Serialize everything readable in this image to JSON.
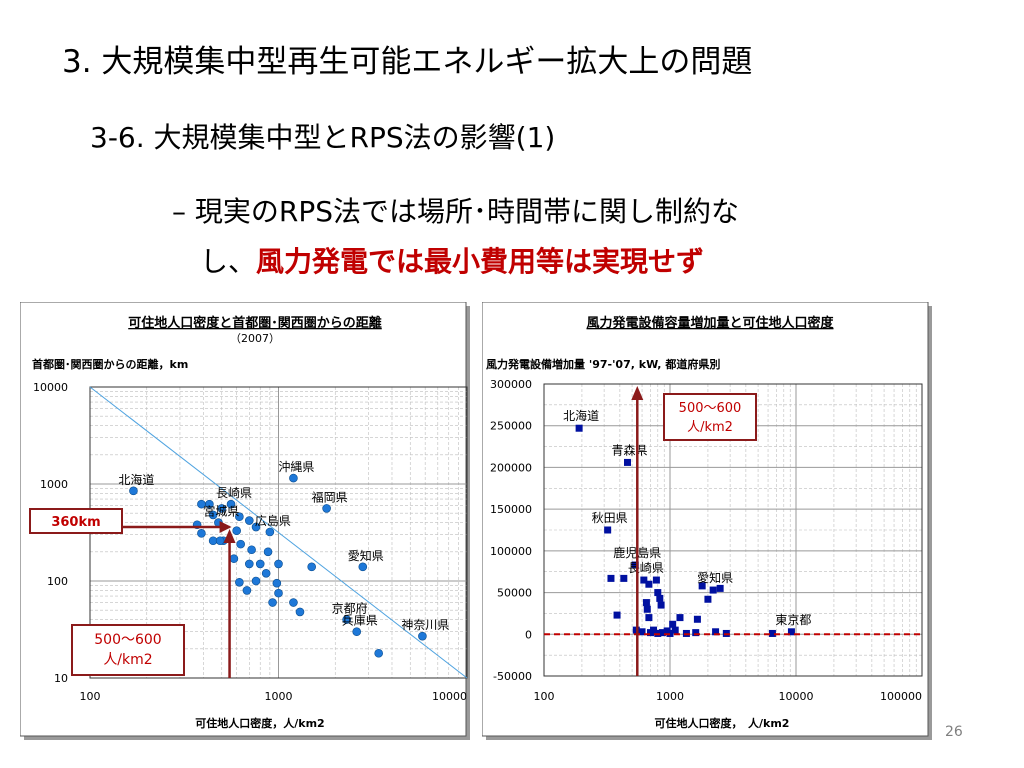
{
  "slide": {
    "title": "3. 大規模集中型再生可能エネルギー拡大上の問題",
    "subtitle": "3-6. 大規模集中型とRPS法の影響(1)",
    "bullet_prefix": "– 現実のRPS法では場所･時間帯に関し制約な",
    "bullet_plain": "し、",
    "bullet_red": "風力発電では最小費用等は実現せず",
    "page_number": "26"
  },
  "colors": {
    "accent_red": "#c00000",
    "dark_red": "#8b1a1a",
    "series_blue": "#1e78d8",
    "series_navy": "#0010a0",
    "grid": "#bdbdbd",
    "trend": "#4fa3e0"
  },
  "chart_data": [
    {
      "type": "scatter",
      "title": "可住地人口密度と首都圏･関西圏からの距離",
      "subtitle": "（2007）",
      "ylabel": "首都圏･関西圏からの距離，km",
      "xlabel": "可住地人口密度，人/km2",
      "x_scale": "log",
      "y_scale": "log",
      "xlim": [
        100,
        10000
      ],
      "ylim": [
        10,
        10000
      ],
      "x_ticks": [
        "100",
        "1000",
        "10000"
      ],
      "y_ticks": [
        "10",
        "100",
        "1000",
        "10000"
      ],
      "grid": true,
      "trend_line": [
        [
          100,
          10000
        ],
        [
          10000,
          10
        ]
      ],
      "points": [
        {
          "x": 170,
          "y": 850,
          "label": "北海道"
        },
        {
          "x": 1200,
          "y": 1150,
          "label": "沖縄県"
        },
        {
          "x": 560,
          "y": 620,
          "label": "長崎県"
        },
        {
          "x": 1800,
          "y": 560,
          "label": "福岡県"
        },
        {
          "x": 480,
          "y": 400,
          "label": "宮城県"
        },
        {
          "x": 900,
          "y": 320,
          "label": "広島県"
        },
        {
          "x": 2800,
          "y": 140,
          "label": "愛知県"
        },
        {
          "x": 2300,
          "y": 40,
          "label": "京都府"
        },
        {
          "x": 2600,
          "y": 30,
          "label": "兵庫県"
        },
        {
          "x": 5800,
          "y": 27,
          "label": "神奈川県"
        },
        {
          "x": 3400,
          "y": 18,
          "label": ""
        },
        {
          "x": 390,
          "y": 620,
          "label": ""
        },
        {
          "x": 430,
          "y": 620,
          "label": ""
        },
        {
          "x": 500,
          "y": 560,
          "label": ""
        },
        {
          "x": 450,
          "y": 480,
          "label": ""
        },
        {
          "x": 620,
          "y": 460,
          "label": ""
        },
        {
          "x": 700,
          "y": 420,
          "label": ""
        },
        {
          "x": 370,
          "y": 380,
          "label": ""
        },
        {
          "x": 760,
          "y": 360,
          "label": ""
        },
        {
          "x": 600,
          "y": 330,
          "label": ""
        },
        {
          "x": 390,
          "y": 310,
          "label": ""
        },
        {
          "x": 450,
          "y": 260,
          "label": ""
        },
        {
          "x": 510,
          "y": 260,
          "label": ""
        },
        {
          "x": 490,
          "y": 260,
          "label": ""
        },
        {
          "x": 630,
          "y": 240,
          "label": ""
        },
        {
          "x": 720,
          "y": 210,
          "label": ""
        },
        {
          "x": 880,
          "y": 200,
          "label": ""
        },
        {
          "x": 580,
          "y": 170,
          "label": ""
        },
        {
          "x": 700,
          "y": 150,
          "label": ""
        },
        {
          "x": 800,
          "y": 150,
          "label": ""
        },
        {
          "x": 1000,
          "y": 150,
          "label": ""
        },
        {
          "x": 1500,
          "y": 140,
          "label": ""
        },
        {
          "x": 860,
          "y": 120,
          "label": ""
        },
        {
          "x": 760,
          "y": 100,
          "label": ""
        },
        {
          "x": 620,
          "y": 97,
          "label": ""
        },
        {
          "x": 980,
          "y": 95,
          "label": ""
        },
        {
          "x": 680,
          "y": 80,
          "label": ""
        },
        {
          "x": 1000,
          "y": 75,
          "label": ""
        },
        {
          "x": 930,
          "y": 60,
          "label": ""
        },
        {
          "x": 1200,
          "y": 60,
          "label": ""
        },
        {
          "x": 1300,
          "y": 48,
          "label": ""
        }
      ],
      "annotations": {
        "callout_360": "360km",
        "callout_density": "500～600\n人/km2"
      },
      "reference_x": 550,
      "reference_y": 360
    },
    {
      "type": "scatter",
      "title": "風力発電設備容量増加量と可住地人口密度",
      "ylabel": "風力発電設備増加量 '97-'07, kW, 都道府県別",
      "xlabel": "可住地人口密度，　人/km2",
      "x_scale": "log",
      "xlim": [
        100,
        100000
      ],
      "ylim": [
        -50000,
        300000
      ],
      "x_ticks": [
        "100",
        "1000",
        "10000",
        "100000"
      ],
      "y_ticks": [
        "-50000",
        "0",
        "50000",
        "100000",
        "150000",
        "200000",
        "250000",
        "300000"
      ],
      "grid": true,
      "points": [
        {
          "x": 190,
          "y": 247000,
          "label": "北海道"
        },
        {
          "x": 460,
          "y": 206000,
          "label": "青森県"
        },
        {
          "x": 320,
          "y": 125000,
          "label": "秋田県"
        },
        {
          "x": 530,
          "y": 83000,
          "label": "鹿児島県"
        },
        {
          "x": 620,
          "y": 65000,
          "label": "長崎県"
        },
        {
          "x": 2200,
          "y": 53000,
          "label": "愛知県"
        },
        {
          "x": 9200,
          "y": 3000,
          "label": "東京都"
        },
        {
          "x": 340,
          "y": 67000,
          "label": ""
        },
        {
          "x": 430,
          "y": 67000,
          "label": ""
        },
        {
          "x": 680,
          "y": 60000,
          "label": ""
        },
        {
          "x": 780,
          "y": 65000,
          "label": ""
        },
        {
          "x": 800,
          "y": 50000,
          "label": ""
        },
        {
          "x": 830,
          "y": 43000,
          "label": ""
        },
        {
          "x": 850,
          "y": 35000,
          "label": ""
        },
        {
          "x": 650,
          "y": 38000,
          "label": ""
        },
        {
          "x": 660,
          "y": 30000,
          "label": ""
        },
        {
          "x": 1800,
          "y": 58000,
          "label": ""
        },
        {
          "x": 2000,
          "y": 42000,
          "label": ""
        },
        {
          "x": 2500,
          "y": 55000,
          "label": ""
        },
        {
          "x": 380,
          "y": 23000,
          "label": ""
        },
        {
          "x": 680,
          "y": 20000,
          "label": ""
        },
        {
          "x": 1050,
          "y": 12000,
          "label": ""
        },
        {
          "x": 1200,
          "y": 20000,
          "label": ""
        },
        {
          "x": 1650,
          "y": 18000,
          "label": ""
        },
        {
          "x": 540,
          "y": 5000,
          "label": ""
        },
        {
          "x": 600,
          "y": 3000,
          "label": ""
        },
        {
          "x": 700,
          "y": 2000,
          "label": ""
        },
        {
          "x": 740,
          "y": 5000,
          "label": ""
        },
        {
          "x": 800,
          "y": 1000,
          "label": ""
        },
        {
          "x": 870,
          "y": 2000,
          "label": ""
        },
        {
          "x": 950,
          "y": 4000,
          "label": ""
        },
        {
          "x": 1000,
          "y": 1000,
          "label": ""
        },
        {
          "x": 1100,
          "y": 5000,
          "label": ""
        },
        {
          "x": 1350,
          "y": 1000,
          "label": ""
        },
        {
          "x": 1600,
          "y": 2000,
          "label": ""
        },
        {
          "x": 2300,
          "y": 3000,
          "label": ""
        },
        {
          "x": 2800,
          "y": 1000,
          "label": ""
        },
        {
          "x": 6500,
          "y": 1000,
          "label": ""
        }
      ],
      "zero_line_value": 0,
      "reference_x": 550,
      "annotations": {
        "callout_density": "500～600\n人/km2"
      }
    }
  ]
}
